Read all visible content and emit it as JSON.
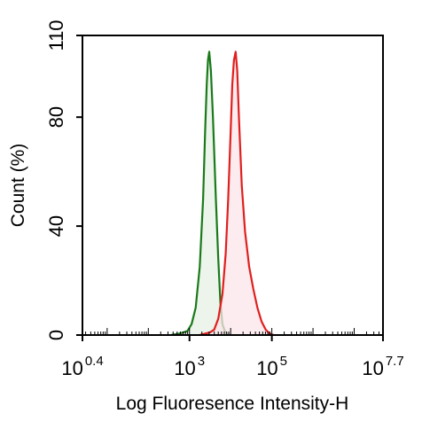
{
  "chart_data": {
    "type": "area",
    "title": "",
    "xlabel": "Log Fluoresence Intensity-H",
    "ylabel": "Count  (%)",
    "x_scale": "log",
    "xlim": [
      0.4,
      7.7
    ],
    "ylim": [
      0,
      110
    ],
    "grid": false,
    "legend": "none",
    "y_ticks": [
      {
        "value": 0,
        "label": "0"
      },
      {
        "value": 40,
        "label": "40"
      },
      {
        "value": 80,
        "label": "80"
      },
      {
        "value": 110,
        "label": "110"
      }
    ],
    "x_ticks": [
      {
        "value": 0.4,
        "base": "10",
        "exp": "0.4"
      },
      {
        "value": 3,
        "base": "10",
        "exp": "3"
      },
      {
        "value": 5,
        "base": "10",
        "exp": "5"
      },
      {
        "value": 7.7,
        "base": "10",
        "exp": "7.7"
      }
    ],
    "series": [
      {
        "color": "#1a7a1a",
        "fill": "#e6f0e6",
        "points": [
          [
            2.55,
            0
          ],
          [
            2.75,
            0.5
          ],
          [
            2.95,
            1.5
          ],
          [
            3.05,
            4
          ],
          [
            3.15,
            10
          ],
          [
            3.25,
            25
          ],
          [
            3.33,
            50
          ],
          [
            3.38,
            75
          ],
          [
            3.42,
            92
          ],
          [
            3.45,
            101
          ],
          [
            3.48,
            104
          ],
          [
            3.52,
            97
          ],
          [
            3.57,
            80
          ],
          [
            3.64,
            50
          ],
          [
            3.7,
            28
          ],
          [
            3.75,
            12
          ],
          [
            3.8,
            4
          ],
          [
            3.87,
            1
          ],
          [
            3.95,
            0
          ]
        ]
      },
      {
        "color": "#e01f1f",
        "fill": "#fbe6ea",
        "points": [
          [
            3.25,
            0
          ],
          [
            3.5,
            1
          ],
          [
            3.6,
            2
          ],
          [
            3.7,
            6
          ],
          [
            3.8,
            15
          ],
          [
            3.88,
            30
          ],
          [
            3.94,
            50
          ],
          [
            4,
            75
          ],
          [
            4.04,
            92
          ],
          [
            4.08,
            101
          ],
          [
            4.12,
            104
          ],
          [
            4.16,
            97
          ],
          [
            4.2,
            80
          ],
          [
            4.27,
            55
          ],
          [
            4.35,
            38
          ],
          [
            4.45,
            25
          ],
          [
            4.55,
            17
          ],
          [
            4.65,
            10
          ],
          [
            4.75,
            5
          ],
          [
            4.85,
            2
          ],
          [
            4.95,
            0.5
          ],
          [
            5.05,
            0
          ]
        ]
      }
    ]
  }
}
